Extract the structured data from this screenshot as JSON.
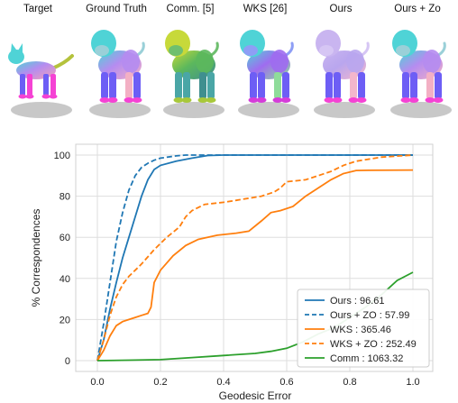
{
  "figure": {
    "columns": [
      {
        "label": "Target",
        "shape": "cat",
        "palette": [
          "#4fd3d6",
          "#b58cf0",
          "#f3a0b8",
          "#6d5ef5",
          "#f542d4",
          "#b4c23c"
        ]
      },
      {
        "label": "Ground Truth",
        "shape": "lion",
        "palette": [
          "#4fd3d6",
          "#b58cf0",
          "#f3b0c4",
          "#6d5ef5",
          "#f542d4",
          "#9ad0d8"
        ]
      },
      {
        "label": "Comm. [5]",
        "shape": "lion",
        "palette": [
          "#c7d93a",
          "#5cb85c",
          "#3f8f8f",
          "#4aa6a6",
          "#a8c83a",
          "#6fbf6f"
        ]
      },
      {
        "label": "WKS [26]",
        "shape": "lion",
        "palette": [
          "#4fd3d6",
          "#9f6cf0",
          "#8fdc9a",
          "#6d5ef5",
          "#d53cd9",
          "#8e9ef5"
        ]
      },
      {
        "label": "Ours",
        "shape": "lion",
        "palette": [
          "#c9b5f0",
          "#b9a6ee",
          "#f3b6cc",
          "#6d5ef5",
          "#f542d4",
          "#d6c6f4"
        ]
      },
      {
        "label": "Ours + Zo",
        "shape": "lion",
        "palette": [
          "#4fd3d6",
          "#b58cf0",
          "#f3b0c4",
          "#6d5ef5",
          "#f542d4",
          "#9ad0d8"
        ]
      }
    ]
  },
  "chart_data": {
    "type": "line",
    "title": "",
    "xlabel": "Geodesic Error",
    "ylabel": "% Correspondences",
    "xlim": [
      0,
      1
    ],
    "ylim": [
      0,
      100
    ],
    "xticks": [
      "0.0",
      "0.2",
      "0.4",
      "0.6",
      "0.8",
      "1.0"
    ],
    "yticks": [
      "0",
      "20",
      "40",
      "60",
      "80",
      "100"
    ],
    "grid": true,
    "legend_position": "bottom-right",
    "series": [
      {
        "name": "Ours : 96.61",
        "color": "#1f77b4",
        "dash": "solid",
        "x": [
          0,
          0.02,
          0.04,
          0.06,
          0.08,
          0.1,
          0.12,
          0.14,
          0.16,
          0.18,
          0.2,
          0.25,
          0.3,
          0.35,
          0.4,
          1.0
        ],
        "y": [
          0,
          10,
          25,
          38,
          50,
          60,
          70,
          80,
          88,
          93,
          95,
          97,
          98.5,
          99.8,
          100,
          100
        ]
      },
      {
        "name": "Ours + ZO : 57.99",
        "color": "#1f77b4",
        "dash": "dashed",
        "x": [
          0,
          0.02,
          0.04,
          0.06,
          0.08,
          0.1,
          0.12,
          0.14,
          0.16,
          0.18,
          0.2,
          0.25,
          0.28,
          1.0
        ],
        "y": [
          0,
          18,
          38,
          58,
          72,
          83,
          90,
          94,
          96,
          97.5,
          98.5,
          99.6,
          100,
          100
        ]
      },
      {
        "name": "WKS : 365.46",
        "color": "#ff7f0e",
        "dash": "solid",
        "x": [
          0,
          0.02,
          0.04,
          0.06,
          0.08,
          0.1,
          0.12,
          0.14,
          0.16,
          0.17,
          0.18,
          0.2,
          0.24,
          0.28,
          0.32,
          0.38,
          0.44,
          0.48,
          0.52,
          0.55,
          0.58,
          0.62,
          0.66,
          0.7,
          0.74,
          0.78,
          0.82,
          0.86,
          1.0
        ],
        "y": [
          0,
          5,
          12,
          17,
          19,
          20,
          21,
          22,
          23,
          26,
          38,
          44,
          51,
          56,
          59,
          61,
          62,
          63,
          68,
          72,
          73,
          75,
          80,
          84,
          88,
          91,
          92.5,
          92.6,
          92.7
        ]
      },
      {
        "name": "WKS + ZO : 252.49",
        "color": "#ff7f0e",
        "dash": "dashed",
        "x": [
          0,
          0.02,
          0.04,
          0.06,
          0.08,
          0.1,
          0.12,
          0.14,
          0.18,
          0.22,
          0.26,
          0.28,
          0.3,
          0.34,
          0.4,
          0.44,
          0.48,
          0.52,
          0.56,
          0.58,
          0.6,
          0.66,
          0.7,
          0.74,
          0.78,
          0.82,
          0.9,
          1.0
        ],
        "y": [
          0,
          10,
          22,
          31,
          37,
          41,
          44,
          47,
          54,
          60,
          65,
          70,
          73,
          76,
          77,
          78,
          79,
          80,
          82,
          84,
          87,
          88,
          90,
          92,
          95,
          97,
          99,
          100
        ]
      },
      {
        "name": "Comm : 1063.32",
        "color": "#2ca02c",
        "dash": "solid",
        "x": [
          0,
          0.1,
          0.2,
          0.3,
          0.4,
          0.5,
          0.55,
          0.6,
          0.65,
          0.7,
          0.75,
          0.8,
          0.85,
          0.9,
          0.95,
          1.0
        ],
        "y": [
          0,
          0.2,
          0.5,
          1.5,
          2.5,
          3.5,
          4.5,
          6,
          9,
          13,
          16,
          21,
          26,
          32,
          39,
          43
        ]
      }
    ]
  }
}
